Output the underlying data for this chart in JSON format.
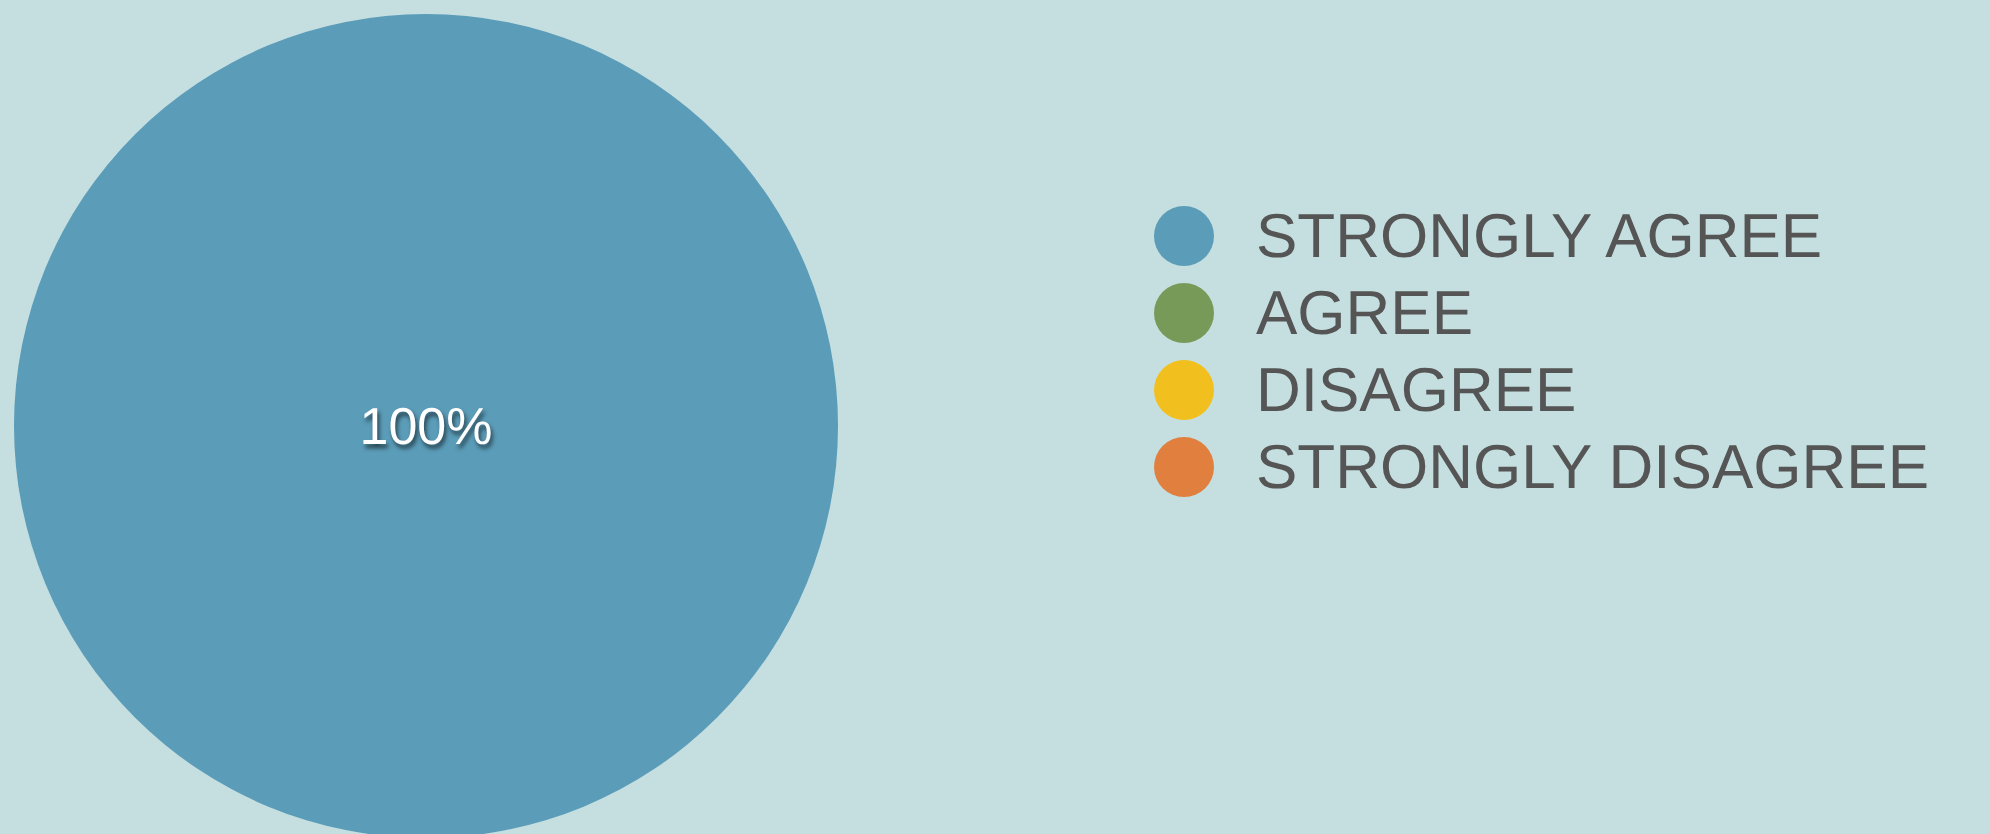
{
  "chart_data": {
    "type": "pie",
    "categories": [
      "STRONGLY AGREE",
      "AGREE",
      "DISAGREE",
      "STRONGLY DISAGREE"
    ],
    "values": [
      100,
      0,
      0,
      0
    ],
    "colors": [
      "#5b9cb8",
      "#789a58",
      "#f2c01e",
      "#e07f3e"
    ],
    "value_labels": [
      "100%",
      null,
      null,
      null
    ],
    "legend": "right"
  }
}
